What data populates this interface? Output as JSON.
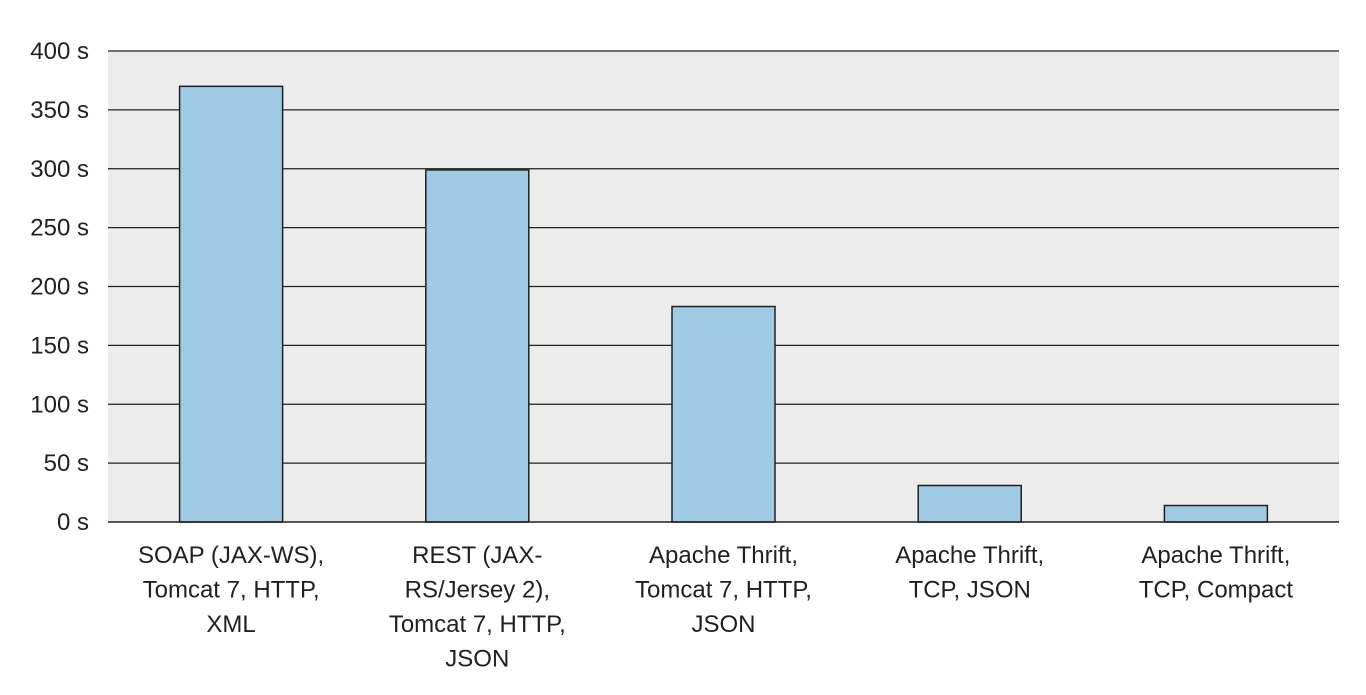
{
  "chart_data": {
    "type": "bar",
    "title": "",
    "xlabel": "",
    "ylabel": "",
    "unit": "s",
    "ylim": [
      0,
      400
    ],
    "yticks": [
      0,
      50,
      100,
      150,
      200,
      250,
      300,
      350,
      400
    ],
    "ytick_labels": [
      "0 s",
      "50 s",
      "100 s",
      "150 s",
      "200 s",
      "250 s",
      "300 s",
      "350 s",
      "400 s"
    ],
    "grid": true,
    "legend": "none",
    "colors": {
      "bar_fill": "#9ecae4",
      "bar_stroke": "#231f20",
      "plot_background": "#ececec",
      "grid_line": "#231f20"
    },
    "categories": [
      [
        "SOAP (JAX-WS),",
        "Tomcat 7, HTTP,",
        "XML"
      ],
      [
        "REST (JAX-",
        "RS/Jersey 2),",
        "Tomcat 7, HTTP,",
        "JSON"
      ],
      [
        "Apache Thrift,",
        "Tomcat 7, HTTP,",
        "JSON"
      ],
      [
        "Apache Thrift,",
        "TCP, JSON"
      ],
      [
        "Apache Thrift,",
        "TCP, Compact"
      ]
    ],
    "values": [
      370,
      299,
      183,
      31,
      14
    ]
  }
}
